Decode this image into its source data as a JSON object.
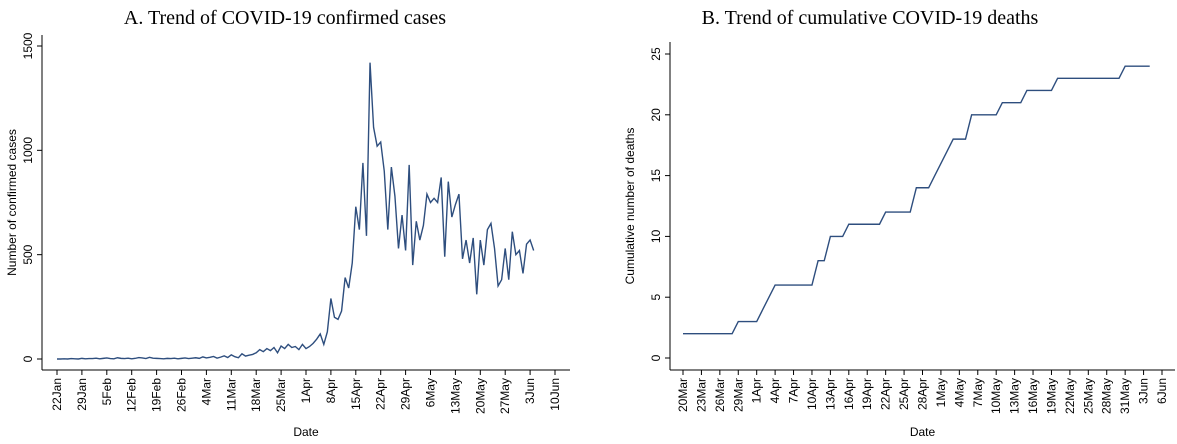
{
  "chart_data": [
    {
      "type": "line",
      "title": "A. Trend of COVID-19 confirmed cases",
      "x_label": "Date",
      "y_label": "Number of confirmed cases",
      "color": "#2e4e7e",
      "x": [
        "22Jan",
        "23Jan",
        "24Jan",
        "25Jan",
        "26Jan",
        "27Jan",
        "28Jan",
        "29Jan",
        "30Jan",
        "31Jan",
        "1Feb",
        "2Feb",
        "3Feb",
        "4Feb",
        "5Feb",
        "6Feb",
        "7Feb",
        "8Feb",
        "9Feb",
        "10Feb",
        "11Feb",
        "12Feb",
        "13Feb",
        "14Feb",
        "15Feb",
        "16Feb",
        "17Feb",
        "18Feb",
        "19Feb",
        "20Feb",
        "21Feb",
        "22Feb",
        "23Feb",
        "24Feb",
        "25Feb",
        "26Feb",
        "27Feb",
        "28Feb",
        "29Feb",
        "1Mar",
        "2Mar",
        "3Mar",
        "4Mar",
        "5Mar",
        "6Mar",
        "7Mar",
        "8Mar",
        "9Mar",
        "10Mar",
        "11Mar",
        "12Mar",
        "13Mar",
        "14Mar",
        "15Mar",
        "16Mar",
        "17Mar",
        "18Mar",
        "19Mar",
        "20Mar",
        "21Mar",
        "22Mar",
        "23Mar",
        "24Mar",
        "25Mar",
        "26Mar",
        "27Mar",
        "28Mar",
        "29Mar",
        "30Mar",
        "31Mar",
        "1Apr",
        "2Apr",
        "3Apr",
        "4Apr",
        "5Apr",
        "6Apr",
        "7Apr",
        "8Apr",
        "9Apr",
        "10Apr",
        "11Apr",
        "12Apr",
        "13Apr",
        "14Apr",
        "15Apr",
        "16Apr",
        "17Apr",
        "18Apr",
        "19Apr",
        "20Apr",
        "21Apr",
        "22Apr",
        "23Apr",
        "24Apr",
        "25Apr",
        "26Apr",
        "27Apr",
        "28Apr",
        "29Apr",
        "30Apr",
        "1May",
        "2May",
        "3May",
        "4May",
        "5May",
        "6May",
        "7May",
        "8May",
        "9May",
        "10May",
        "11May",
        "12May",
        "13May",
        "14May",
        "15May",
        "16May",
        "17May",
        "18May",
        "19May",
        "20May",
        "21May",
        "22May",
        "23May",
        "24May",
        "25May",
        "26May",
        "27May",
        "28May",
        "29May",
        "30May",
        "31May",
        "1Jun",
        "2Jun",
        "3Jun",
        "4Jun"
      ],
      "values": [
        0,
        0,
        1,
        0,
        2,
        1,
        0,
        3,
        1,
        2,
        2,
        4,
        1,
        3,
        5,
        2,
        1,
        6,
        3,
        2,
        4,
        1,
        3,
        7,
        5,
        2,
        8,
        4,
        3,
        2,
        1,
        3,
        2,
        4,
        1,
        3,
        5,
        2,
        4,
        6,
        3,
        10,
        5,
        8,
        12,
        4,
        9,
        15,
        7,
        20,
        11,
        6,
        25,
        14,
        18,
        22,
        30,
        45,
        35,
        50,
        40,
        55,
        30,
        62,
        50,
        70,
        55,
        60,
        45,
        70,
        50,
        60,
        75,
        95,
        120,
        70,
        130,
        290,
        200,
        190,
        230,
        390,
        340,
        460,
        730,
        620,
        940,
        590,
        1420,
        1110,
        1020,
        1040,
        900,
        620,
        920,
        780,
        530,
        690,
        520,
        930,
        450,
        660,
        570,
        640,
        790,
        750,
        770,
        750,
        870,
        490,
        850,
        680,
        740,
        790,
        480,
        570,
        460,
        580,
        310,
        570,
        450,
        620,
        650,
        530,
        350,
        380,
        530,
        380,
        610,
        500,
        520,
        410,
        550,
        570,
        520
      ],
      "xlim": [
        "22Jan",
        "10Jun"
      ],
      "xticks": [
        "22Jan",
        "29Jan",
        "5Feb",
        "12Feb",
        "19Feb",
        "26Feb",
        "4Mar",
        "11Mar",
        "18Mar",
        "25Mar",
        "1Apr",
        "8Apr",
        "15Apr",
        "22Apr",
        "29Apr",
        "6May",
        "13May",
        "20May",
        "27May",
        "3Jun",
        "10Jun"
      ],
      "ylim": [
        0,
        1500
      ],
      "yticks": [
        0,
        500,
        1000,
        1500
      ]
    },
    {
      "type": "line",
      "title": "B. Trend of cumulative COVID-19 deaths",
      "x_label": "Date",
      "y_label": "Cumulative number of deaths",
      "color": "#2e4e7e",
      "x": [
        "20Mar",
        "21Mar",
        "22Mar",
        "23Mar",
        "24Mar",
        "25Mar",
        "26Mar",
        "27Mar",
        "28Mar",
        "29Mar",
        "30Mar",
        "31Mar",
        "1Apr",
        "2Apr",
        "3Apr",
        "4Apr",
        "5Apr",
        "6Apr",
        "7Apr",
        "8Apr",
        "9Apr",
        "10Apr",
        "11Apr",
        "12Apr",
        "13Apr",
        "14Apr",
        "15Apr",
        "16Apr",
        "17Apr",
        "18Apr",
        "19Apr",
        "20Apr",
        "21Apr",
        "22Apr",
        "23Apr",
        "24Apr",
        "25Apr",
        "26Apr",
        "27Apr",
        "28Apr",
        "29Apr",
        "30Apr",
        "1May",
        "2May",
        "3May",
        "4May",
        "5May",
        "6May",
        "7May",
        "8May",
        "9May",
        "10May",
        "11May",
        "12May",
        "13May",
        "14May",
        "15May",
        "16May",
        "17May",
        "18May",
        "19May",
        "20May",
        "21May",
        "22May",
        "23May",
        "24May",
        "25May",
        "26May",
        "27May",
        "28May",
        "29May",
        "30May",
        "31May",
        "1Jun",
        "2Jun",
        "3Jun",
        "4Jun"
      ],
      "values": [
        2,
        2,
        2,
        2,
        2,
        2,
        2,
        2,
        2,
        3,
        3,
        3,
        3,
        4,
        5,
        6,
        6,
        6,
        6,
        6,
        6,
        6,
        8,
        8,
        10,
        10,
        10,
        11,
        11,
        11,
        11,
        11,
        11,
        12,
        12,
        12,
        12,
        12,
        14,
        14,
        14,
        15,
        16,
        17,
        18,
        18,
        18,
        20,
        20,
        20,
        20,
        20,
        21,
        21,
        21,
        21,
        22,
        22,
        22,
        22,
        22,
        23,
        23,
        23,
        23,
        23,
        23,
        23,
        23,
        23,
        23,
        23,
        24,
        24,
        24,
        24,
        24
      ],
      "xlim": [
        "20Mar",
        "6Jun"
      ],
      "xticks": [
        "20Mar",
        "23Mar",
        "26Mar",
        "29Mar",
        "1Apr",
        "4Apr",
        "7Apr",
        "10Apr",
        "13Apr",
        "16Apr",
        "19Apr",
        "22Apr",
        "25Apr",
        "28Apr",
        "1May",
        "4May",
        "7May",
        "10May",
        "13May",
        "16May",
        "19May",
        "22May",
        "25May",
        "28May",
        "31May",
        "3Jun",
        "6Jun"
      ],
      "ylim": [
        0,
        25
      ],
      "yticks": [
        0,
        5,
        10,
        15,
        20,
        25
      ]
    }
  ]
}
